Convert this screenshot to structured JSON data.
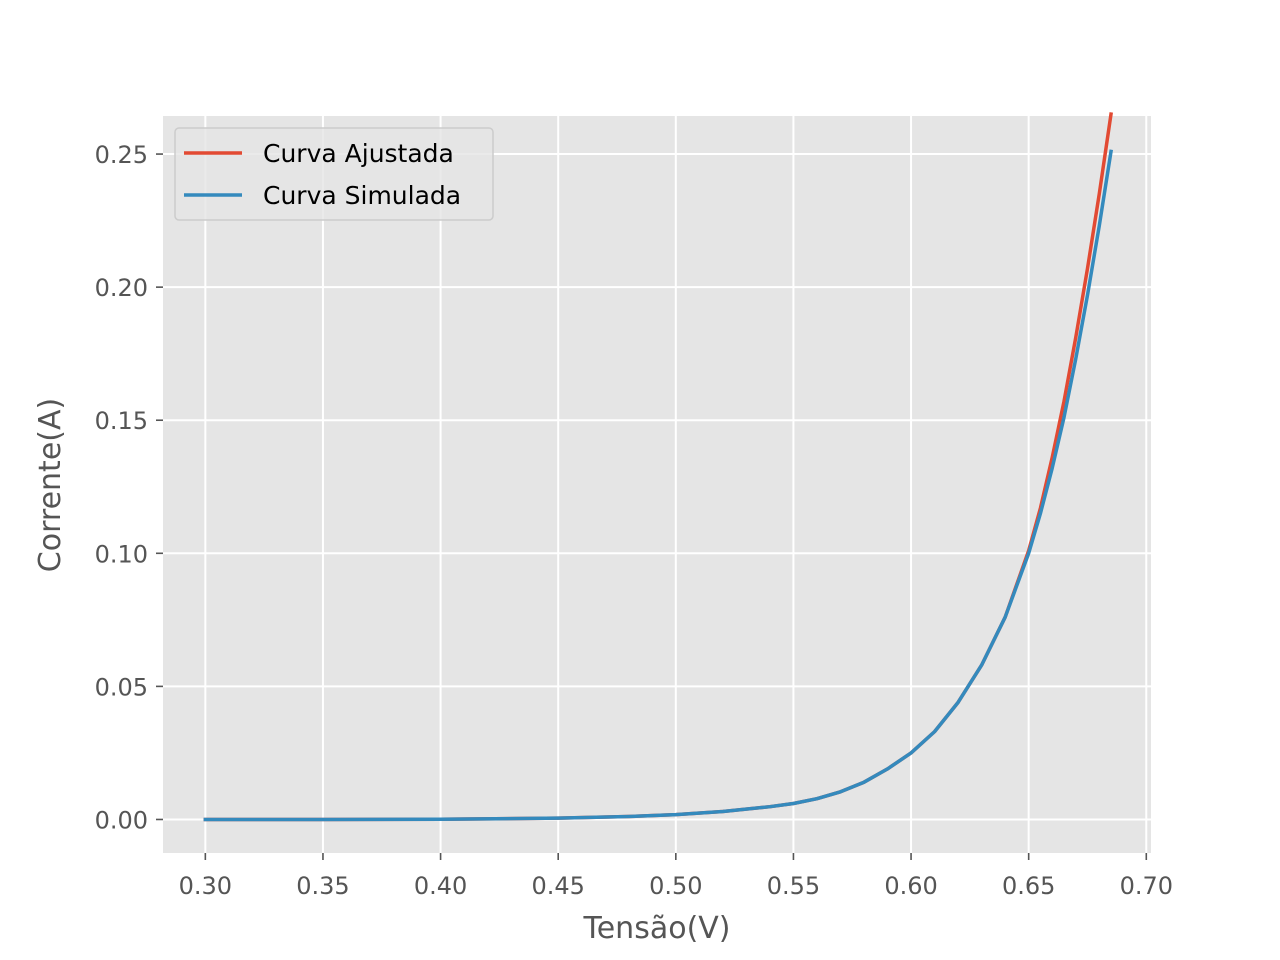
{
  "chart_data": {
    "type": "line",
    "title": "",
    "xlabel": "Tensão(V)",
    "ylabel": "Corrente(A)",
    "xlim": [
      0.282,
      0.702
    ],
    "ylim": [
      -0.0126,
      0.2643
    ],
    "xticks": [
      0.3,
      0.35,
      0.4,
      0.45,
      0.5,
      0.55,
      0.6,
      0.65,
      0.7
    ],
    "xtick_labels": [
      "0.30",
      "0.35",
      "0.40",
      "0.45",
      "0.50",
      "0.55",
      "0.60",
      "0.65",
      "0.70"
    ],
    "yticks": [
      0.0,
      0.05,
      0.1,
      0.15,
      0.2,
      0.25
    ],
    "ytick_labels": [
      "0.00",
      "0.05",
      "0.10",
      "0.15",
      "0.20",
      "0.25"
    ],
    "grid": true,
    "legend_position": "top-left",
    "series": [
      {
        "name": "Curva Ajustada",
        "color": "#E24A33",
        "x": [
          0.3,
          0.35,
          0.4,
          0.45,
          0.48,
          0.5,
          0.52,
          0.54,
          0.55,
          0.56,
          0.57,
          0.58,
          0.59,
          0.6,
          0.61,
          0.62,
          0.63,
          0.64,
          0.65,
          0.655,
          0.66,
          0.665,
          0.67,
          0.675,
          0.68,
          0.685
        ],
        "y": [
          0.0,
          0.0,
          0.0001,
          0.0005,
          0.0011,
          0.0018,
          0.003,
          0.0048,
          0.006,
          0.0078,
          0.0104,
          0.014,
          0.019,
          0.025,
          0.033,
          0.044,
          0.058,
          0.076,
          0.101,
          0.117,
          0.136,
          0.157,
          0.181,
          0.207,
          0.235,
          0.265
        ]
      },
      {
        "name": "Curva Simulada",
        "color": "#348ABD",
        "x": [
          0.3,
          0.35,
          0.4,
          0.45,
          0.48,
          0.5,
          0.52,
          0.54,
          0.55,
          0.56,
          0.57,
          0.58,
          0.59,
          0.6,
          0.61,
          0.62,
          0.63,
          0.64,
          0.65,
          0.655,
          0.66,
          0.665,
          0.67,
          0.675,
          0.68,
          0.685
        ],
        "y": [
          0.0,
          0.0,
          0.0001,
          0.0005,
          0.0011,
          0.0018,
          0.003,
          0.0048,
          0.006,
          0.0078,
          0.0104,
          0.014,
          0.019,
          0.025,
          0.033,
          0.044,
          0.058,
          0.076,
          0.1,
          0.115,
          0.132,
          0.151,
          0.173,
          0.197,
          0.223,
          0.251
        ]
      }
    ]
  }
}
